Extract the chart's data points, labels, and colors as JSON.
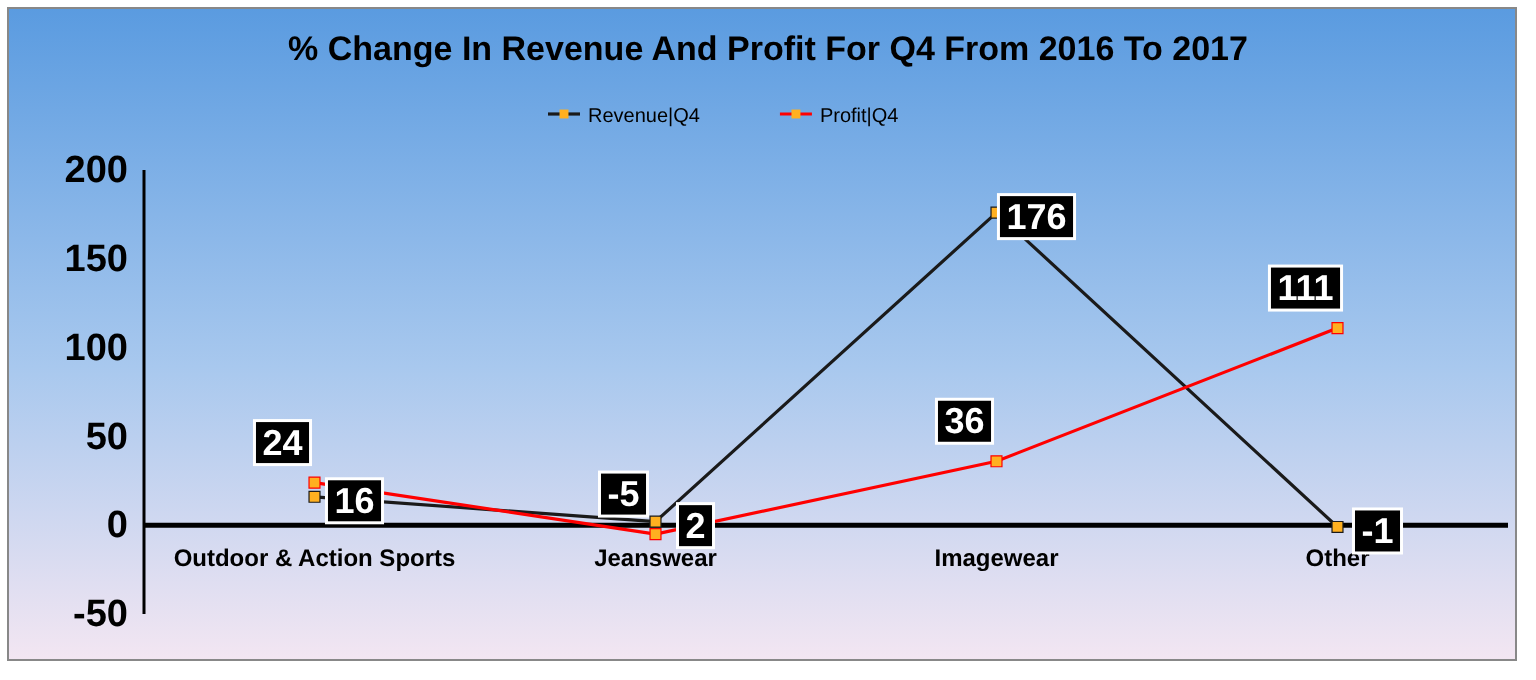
{
  "chart_data": {
    "type": "line",
    "title": "% Change In Revenue And Profit For Q4 From 2016 To 2017",
    "categories": [
      "Outdoor & Action Sports",
      "Jeanswear",
      "Imagewear",
      "Other"
    ],
    "series": [
      {
        "name": "Revenue|Q4",
        "color": "#1a1a1a",
        "values": [
          16,
          2,
          176,
          -1
        ]
      },
      {
        "name": "Profit|Q4",
        "color": "#ff0000",
        "values": [
          24,
          -5,
          36,
          111
        ]
      }
    ],
    "ylim": [
      -50,
      200
    ],
    "yticks": [
      -50,
      0,
      50,
      100,
      150,
      200
    ],
    "grid": false,
    "legend": "top",
    "marker": "square",
    "data_labels": true
  }
}
